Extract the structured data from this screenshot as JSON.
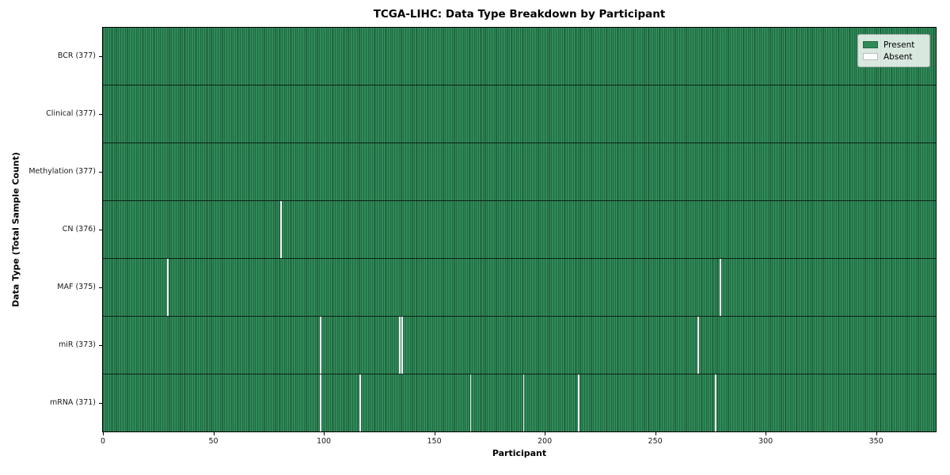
{
  "chart_data": {
    "type": "heatmap",
    "title": "TCGA-LIHC: Data Type Breakdown by Participant",
    "xlabel": "Participant",
    "ylabel": "Data Type (Total Sample Count)",
    "n_participants": 377,
    "xlim": [
      0,
      377
    ],
    "x_ticks": [
      0,
      50,
      100,
      150,
      200,
      250,
      300,
      350
    ],
    "grid": "cell-borders-on",
    "legend_position": "upper-right",
    "legend": [
      {
        "label": "Present",
        "color": "#2e8b57"
      },
      {
        "label": "Absent",
        "color": "#fcfcfc"
      }
    ],
    "rows": [
      {
        "label": "BCR (377)",
        "name": "BCR",
        "total": 377,
        "absent_participants": []
      },
      {
        "label": "Clinical (377)",
        "name": "Clinical",
        "total": 377,
        "absent_participants": []
      },
      {
        "label": "Methylation (377)",
        "name": "Methylation",
        "total": 377,
        "absent_participants": []
      },
      {
        "label": "CN (376)",
        "name": "CN",
        "total": 376,
        "absent_participants": [
          80
        ]
      },
      {
        "label": "MAF (375)",
        "name": "MAF",
        "total": 375,
        "absent_participants": [
          29,
          279
        ]
      },
      {
        "label": "miR (373)",
        "name": "miR",
        "total": 373,
        "absent_participants": [
          98,
          134,
          135,
          269
        ]
      },
      {
        "label": "mRNA (371)",
        "name": "mRNA",
        "total": 371,
        "absent_participants": [
          98,
          116,
          166,
          190,
          215,
          277
        ]
      }
    ],
    "colors": {
      "present": "#2e8b57",
      "absent": "#fcfcfc",
      "cell_border": "#1b4631",
      "row_separator": "#0d2016",
      "frame": "#000000",
      "legend_bg": "rgba(255,255,255,0.82)"
    }
  }
}
